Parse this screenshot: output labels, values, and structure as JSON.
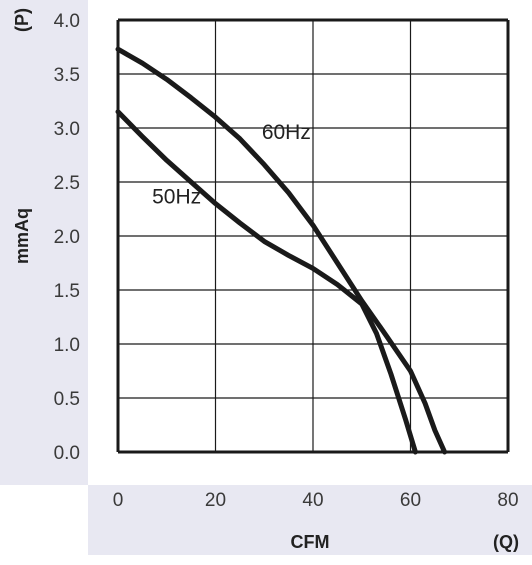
{
  "chart_data": {
    "type": "line",
    "xlabel": "CFM",
    "ylabel": "mmAq",
    "x_symbol": "(Q)",
    "y_symbol": "(P)",
    "xlim": [
      0,
      80
    ],
    "ylim": [
      0,
      4
    ],
    "x_ticks": [
      "0",
      "20",
      "40",
      "60",
      "80"
    ],
    "y_ticks": [
      "0.0",
      "0.5",
      "1.0",
      "1.5",
      "2.0",
      "2.5",
      "3.0",
      "3.5",
      "4.0"
    ],
    "grid": true,
    "series": [
      {
        "name": "50Hz",
        "x": [
          0,
          5,
          10,
          15,
          20,
          25,
          30,
          35,
          40,
          45,
          50,
          53,
          56,
          59,
          61
        ],
        "y": [
          3.15,
          2.92,
          2.7,
          2.5,
          2.3,
          2.12,
          1.95,
          1.82,
          1.7,
          1.55,
          1.37,
          1.1,
          0.72,
          0.3,
          0.0
        ]
      },
      {
        "name": "60Hz",
        "x": [
          0,
          5,
          10,
          15,
          20,
          25,
          30,
          35,
          40,
          45,
          50,
          55,
          60,
          63,
          65,
          67
        ],
        "y": [
          3.73,
          3.6,
          3.45,
          3.28,
          3.1,
          2.9,
          2.66,
          2.4,
          2.1,
          1.75,
          1.4,
          1.08,
          0.75,
          0.45,
          0.2,
          0.0
        ]
      }
    ],
    "colors": {
      "line": "#1a1a1a",
      "grid": "#1a1a1a",
      "band": "#e8e8f2"
    }
  }
}
